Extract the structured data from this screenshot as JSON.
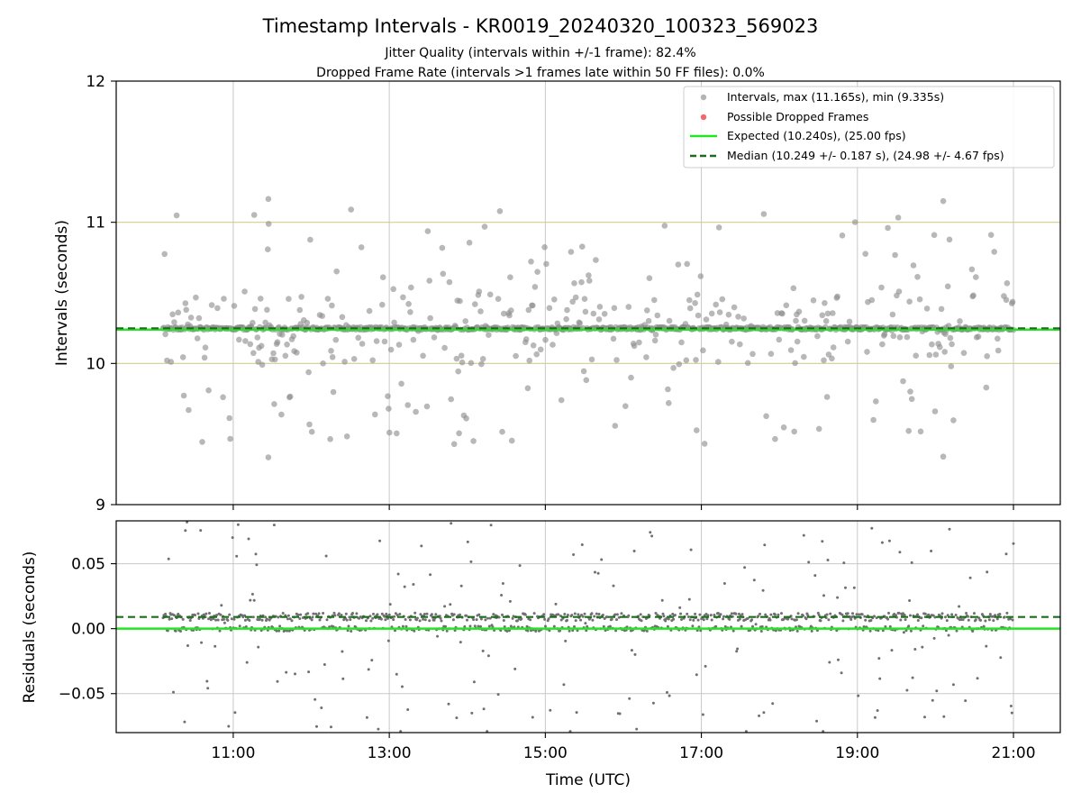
{
  "chart_data": [
    {
      "type": "scatter",
      "title": "Timestamp Intervals - KR0019_20240320_100323_569023",
      "subtitle_lines": [
        "Jitter Quality (intervals within +/-1 frame): 82.4%",
        "Dropped Frame Rate (intervals >1 frames late within 50 FF files): 0.0%"
      ],
      "ylabel": "Intervals (seconds)",
      "ylim": [
        9,
        12
      ],
      "yticks": [
        "9",
        "10",
        "11",
        "12"
      ],
      "xlim_hours": [
        9.5,
        21.6
      ],
      "grid": true,
      "legend_position": "top-right",
      "reference_lines": [
        {
          "name": "upper-bound",
          "y": 11.0,
          "color": "#d4cd8f"
        },
        {
          "name": "lower-bound",
          "y": 10.0,
          "color": "#d4cd8f"
        }
      ],
      "series": [
        {
          "name": "Intervals, max (11.165s), min (9.335s)",
          "kind": "scatter",
          "color": "#8c8c8c",
          "max": 11.165,
          "min": 9.335,
          "x_range_hours": [
            10.1,
            21.0
          ],
          "count": 1064,
          "baseline_fraction": 0.6,
          "outlier_spread": [
            9.4,
            11.1
          ]
        },
        {
          "name": "Possible Dropped Frames",
          "kind": "scatter",
          "color": "#e8383d",
          "values": []
        },
        {
          "name": "Expected (10.240s), (25.00 fps)",
          "kind": "hline",
          "y": 10.24,
          "color": "#22e622",
          "style": "solid"
        },
        {
          "name": "Median (10.249 +/- 0.187 s), (24.98 +/- 4.67 fps)",
          "kind": "hline",
          "y": 10.249,
          "color": "#1d6b1d",
          "style": "dashed"
        }
      ]
    },
    {
      "type": "scatter",
      "xlabel": "Time (UTC)",
      "ylabel": "Residuals (seconds)",
      "ylim": [
        -0.08,
        0.083
      ],
      "yticks": [
        "0.05",
        "0.00",
        "−0.05"
      ],
      "ytick_values": [
        0.05,
        0.0,
        -0.05
      ],
      "xticks": [
        "11:00",
        "13:00",
        "15:00",
        "17:00",
        "19:00",
        "21:00"
      ],
      "xtick_hours": [
        11,
        13,
        15,
        17,
        19,
        21
      ],
      "grid": true,
      "series": [
        {
          "kind": "scatter",
          "color": "#707070",
          "count": 1064,
          "band_values": [
            0.009,
            0.0
          ]
        },
        {
          "kind": "hline",
          "y": 0.0,
          "color": "#22e622",
          "style": "solid"
        },
        {
          "kind": "hline",
          "y": 0.009,
          "color": "#1d6b1d",
          "style": "dashed"
        }
      ]
    }
  ]
}
